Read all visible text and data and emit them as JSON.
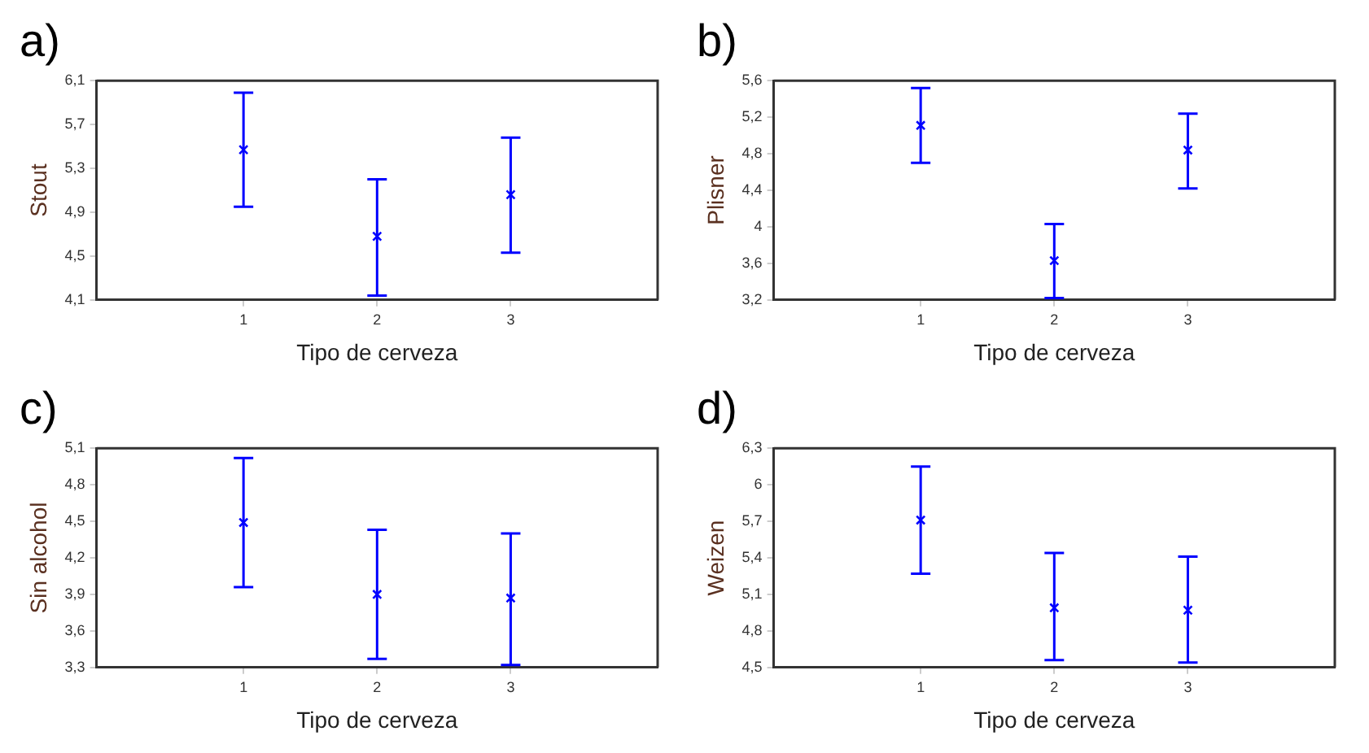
{
  "chart_data": [
    {
      "type": "scatter",
      "title": "a)",
      "xlabel": "Tipo de cerveza",
      "ylabel": "Stout",
      "x": [
        1,
        2,
        3
      ],
      "xlim": [
        -0.1,
        4.1
      ],
      "xticks": [
        1,
        2,
        3
      ],
      "ylim": [
        4.1,
        6.1
      ],
      "yticks": [
        {
          "value": 4.1,
          "label": "4,1"
        },
        {
          "value": 4.5,
          "label": "4,5"
        },
        {
          "value": 4.9,
          "label": "4,9"
        },
        {
          "value": 5.3,
          "label": "5,3"
        },
        {
          "value": 5.7,
          "label": "5,7"
        },
        {
          "value": 6.1,
          "label": "6,1"
        }
      ],
      "grid": false,
      "legend": false,
      "marker": "cross",
      "series": [
        {
          "color": "#0000ff",
          "values": [
            5.47,
            4.68,
            5.06
          ],
          "errors": [
            [
              4.95,
              5.99
            ],
            [
              4.14,
              5.2
            ],
            [
              4.53,
              5.58
            ]
          ]
        }
      ]
    },
    {
      "type": "scatter",
      "title": "b)",
      "xlabel": "Tipo de cerveza",
      "ylabel": "Plisner",
      "x": [
        1,
        2,
        3
      ],
      "xlim": [
        -0.1,
        4.1
      ],
      "xticks": [
        1,
        2,
        3
      ],
      "ylim": [
        3.2,
        5.6
      ],
      "yticks": [
        {
          "value": 3.2,
          "label": "3,2"
        },
        {
          "value": 3.6,
          "label": "3,6"
        },
        4,
        {
          "value": 4.4,
          "label": "4,4"
        },
        {
          "value": 4.8,
          "label": "4,8"
        },
        {
          "value": 5.2,
          "label": "5,2"
        },
        {
          "value": 5.6,
          "label": "5,6"
        }
      ],
      "grid": false,
      "legend": false,
      "marker": "cross",
      "series": [
        {
          "color": "#0000ff",
          "values": [
            5.11,
            3.63,
            4.84
          ],
          "errors": [
            [
              4.7,
              5.52
            ],
            [
              3.22,
              4.03
            ],
            [
              4.42,
              5.24
            ]
          ]
        }
      ]
    },
    {
      "type": "scatter",
      "title": "c)",
      "xlabel": "Tipo de cerveza",
      "ylabel": "Sin alcohol",
      "x": [
        1,
        2,
        3
      ],
      "xlim": [
        -0.1,
        4.1
      ],
      "xticks": [
        1,
        2,
        3
      ],
      "ylim": [
        3.3,
        5.1
      ],
      "yticks": [
        {
          "value": 3.3,
          "label": "3,3"
        },
        {
          "value": 3.6,
          "label": "3,6"
        },
        {
          "value": 3.9,
          "label": "3,9"
        },
        {
          "value": 4.2,
          "label": "4,2"
        },
        {
          "value": 4.5,
          "label": "4,5"
        },
        {
          "value": 4.8,
          "label": "4,8"
        },
        {
          "value": 5.1,
          "label": "5,1"
        }
      ],
      "grid": false,
      "legend": false,
      "marker": "cross",
      "series": [
        {
          "color": "#0000ff",
          "values": [
            4.49,
            3.9,
            3.87
          ],
          "errors": [
            [
              3.96,
              5.02
            ],
            [
              3.37,
              4.43
            ],
            [
              3.32,
              4.4
            ]
          ]
        }
      ]
    },
    {
      "type": "scatter",
      "title": "d)",
      "xlabel": "Tipo de cerveza",
      "ylabel": "Weizen",
      "x": [
        1,
        2,
        3
      ],
      "xlim": [
        -0.1,
        4.1
      ],
      "xticks": [
        1,
        2,
        3
      ],
      "ylim": [
        4.5,
        6.3
      ],
      "yticks": [
        {
          "value": 4.5,
          "label": "4,5"
        },
        {
          "value": 4.8,
          "label": "4,8"
        },
        {
          "value": 5.1,
          "label": "5,1"
        },
        {
          "value": 5.4,
          "label": "5,4"
        },
        {
          "value": 5.7,
          "label": "5,7"
        },
        6,
        {
          "value": 6.3,
          "label": "6,3"
        }
      ],
      "grid": false,
      "legend": false,
      "marker": "cross",
      "series": [
        {
          "color": "#0000ff",
          "values": [
            5.71,
            4.99,
            4.97
          ],
          "errors": [
            [
              5.27,
              6.15
            ],
            [
              4.56,
              5.44
            ],
            [
              4.54,
              5.41
            ]
          ]
        }
      ]
    }
  ]
}
